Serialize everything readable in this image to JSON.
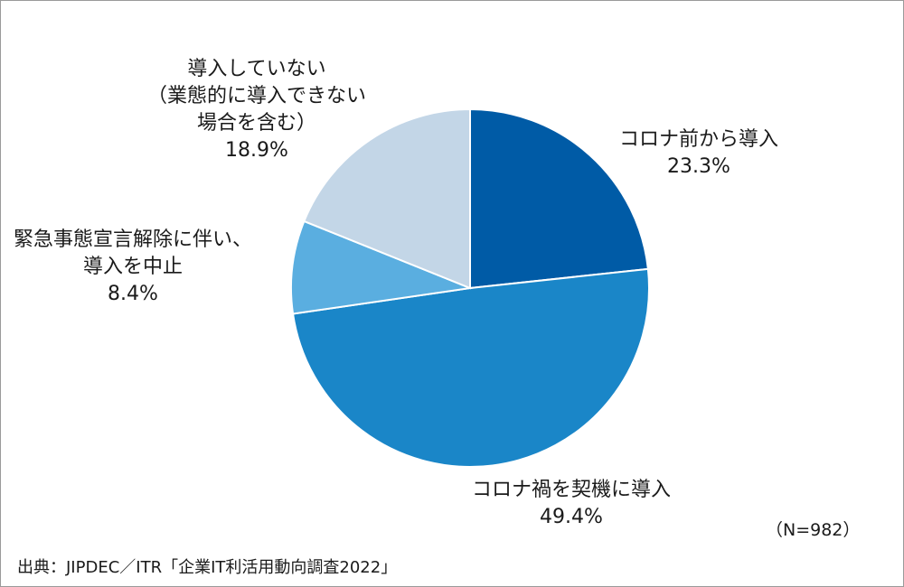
{
  "chart_data": {
    "type": "pie",
    "start_angle_deg": 0,
    "direction": "clockwise",
    "slices": [
      {
        "label_lines": [
          "コロナ前から導入"
        ],
        "value": 23.3,
        "value_label": "23.3%",
        "color": "#005ba6"
      },
      {
        "label_lines": [
          "コロナ禍を契機に導入"
        ],
        "value": 49.4,
        "value_label": "49.4%",
        "color": "#1a86c8"
      },
      {
        "label_lines": [
          "緊急事態宣言解除に伴い、",
          "導入を中止"
        ],
        "value": 8.4,
        "value_label": "8.4%",
        "color": "#5aaee0"
      },
      {
        "label_lines": [
          "導入していない",
          "（業態的に導入できない",
          "場合を含む）"
        ],
        "value": 18.9,
        "value_label": "18.9%",
        "color": "#c3d6e7"
      }
    ]
  },
  "note": "（N=982）",
  "source": "出典：JIPDEC／ITR「企業IT利活用動向調査2022」"
}
